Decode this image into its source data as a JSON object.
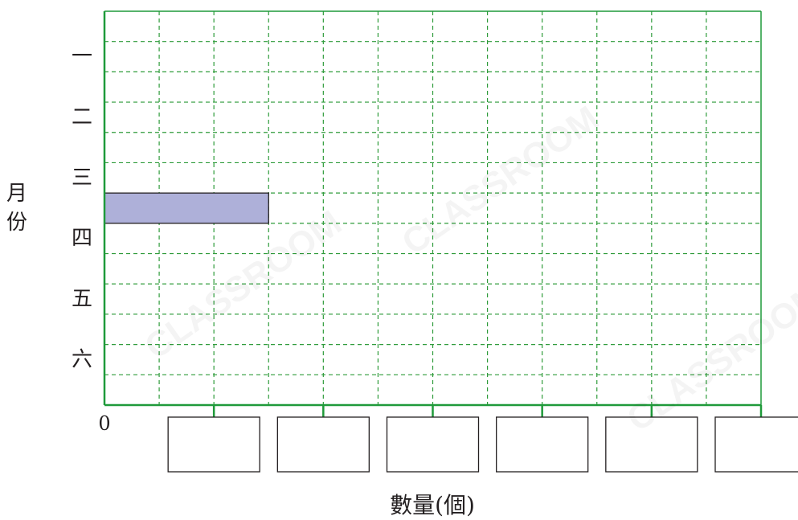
{
  "chart_data": {
    "type": "bar",
    "orientation": "horizontal",
    "categories": [
      "一",
      "二",
      "三",
      "四",
      "五",
      "六"
    ],
    "values": [
      null,
      null,
      3,
      null,
      null,
      null
    ],
    "ylabel": "月份",
    "xlabel": "數量(個)",
    "xlim": [
      0,
      12
    ],
    "x_origin_label": "0",
    "x_tick_answer_boxes": 6,
    "grid": true,
    "bar_color": "#aeb0d9",
    "grid_color": "#2e9b3a",
    "axis_color": "#1f9a3a"
  },
  "watermark": "CLASSROOM"
}
